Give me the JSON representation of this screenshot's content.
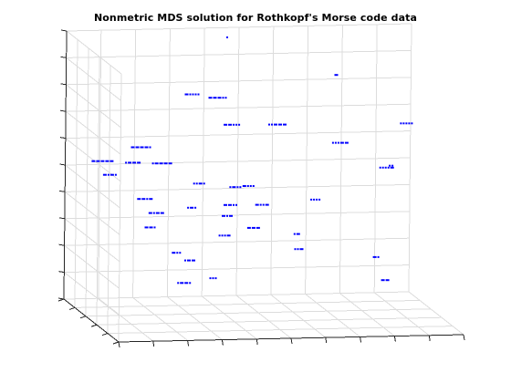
{
  "chart_data": {
    "type": "scatter",
    "projection": "3d",
    "title": "Nonmetric MDS solution for Rothkopf's Morse code data",
    "xlabel": "",
    "ylabel": "",
    "zlabel": "",
    "grid": true,
    "box": "open-3d-grid",
    "tick_labels": "none",
    "marker_color": "#0000ff",
    "grid_color": "#dcdcdc",
    "axis_color": "#262626",
    "points": [
      {
        "label": "-----",
        "x": 0.1,
        "y": 0.95,
        "z": 0.52
      },
      {
        "label": "----.",
        "x": 0.2,
        "y": 0.88,
        "z": 0.58
      },
      {
        "label": "---..",
        "x": 0.4,
        "y": 0.75,
        "z": 0.78
      },
      {
        "label": "--...",
        "x": 0.45,
        "y": 0.8,
        "z": 0.67
      },
      {
        "label": "-....",
        "x": 0.34,
        "y": 0.84,
        "z": 0.78
      },
      {
        "label": ".----",
        "x": 0.26,
        "y": 0.87,
        "z": 0.52
      },
      {
        "label": "..---",
        "x": 0.55,
        "y": 0.6,
        "z": 0.7
      },
      {
        "label": "...--",
        "x": 0.72,
        "y": 0.52,
        "z": 0.64
      },
      {
        "label": "....-",
        "x": 0.82,
        "y": 0.3,
        "z": 0.58
      },
      {
        "label": ".....",
        "x": 0.86,
        "y": 0.2,
        "z": 0.76
      },
      {
        "label": ".-",
        "x": 0.6,
        "y": 0.54,
        "z": 0.3
      },
      {
        "label": "-...",
        "x": 0.5,
        "y": 0.8,
        "z": 0.44
      },
      {
        "label": "-.-.",
        "x": 0.12,
        "y": 0.94,
        "z": 0.47
      },
      {
        "label": "-..",
        "x": 0.28,
        "y": 0.72,
        "z": 0.21
      },
      {
        "label": ".",
        "x": 0.45,
        "y": 0.9,
        "z": 0.98
      },
      {
        "label": "..-.",
        "x": 0.36,
        "y": 0.82,
        "z": 0.45
      },
      {
        "label": "--.",
        "x": 0.2,
        "y": 0.7,
        "z": 0.31
      },
      {
        "label": "....",
        "x": 0.64,
        "y": 0.46,
        "z": 0.44
      },
      {
        "label": "..",
        "x": 0.82,
        "y": 0.22,
        "z": 0.6
      },
      {
        "label": ".---",
        "x": 0.18,
        "y": 0.9,
        "z": 0.52
      },
      {
        "label": "-.-",
        "x": 0.42,
        "y": 0.68,
        "z": 0.35
      },
      {
        "label": ".-..",
        "x": 0.43,
        "y": 0.6,
        "z": 0.47
      },
      {
        "label": "--",
        "x": 0.8,
        "y": 0.18,
        "z": 0.18
      },
      {
        "label": "-.",
        "x": 0.76,
        "y": 0.1,
        "z": 0.28
      },
      {
        "label": "---",
        "x": 0.5,
        "y": 0.7,
        "z": 0.3
      },
      {
        "label": ".--.",
        "x": 0.3,
        "y": 0.7,
        "z": 0.1
      },
      {
        "label": "--.-",
        "x": 0.2,
        "y": 0.8,
        "z": 0.4
      },
      {
        "label": ".-.",
        "x": 0.32,
        "y": 0.7,
        "z": 0.38
      },
      {
        "label": "...",
        "x": 0.36,
        "y": 0.55,
        "z": 0.14
      },
      {
        "label": "-",
        "x": 0.7,
        "y": 0.48,
        "z": 0.9
      },
      {
        "label": "..-",
        "x": 0.6,
        "y": 0.5,
        "z": 0.25
      },
      {
        "label": "...-",
        "x": 0.4,
        "y": 0.6,
        "z": 0.29
      },
      {
        "label": ".--",
        "x": 0.3,
        "y": 0.6,
        "z": 0.2
      },
      {
        "label": "-..-",
        "x": 0.5,
        "y": 0.55,
        "z": 0.41
      },
      {
        "label": "-.--",
        "x": 0.24,
        "y": 0.84,
        "z": 0.34
      },
      {
        "label": "--..",
        "x": 0.4,
        "y": 0.5,
        "z": 0.42
      }
    ]
  }
}
